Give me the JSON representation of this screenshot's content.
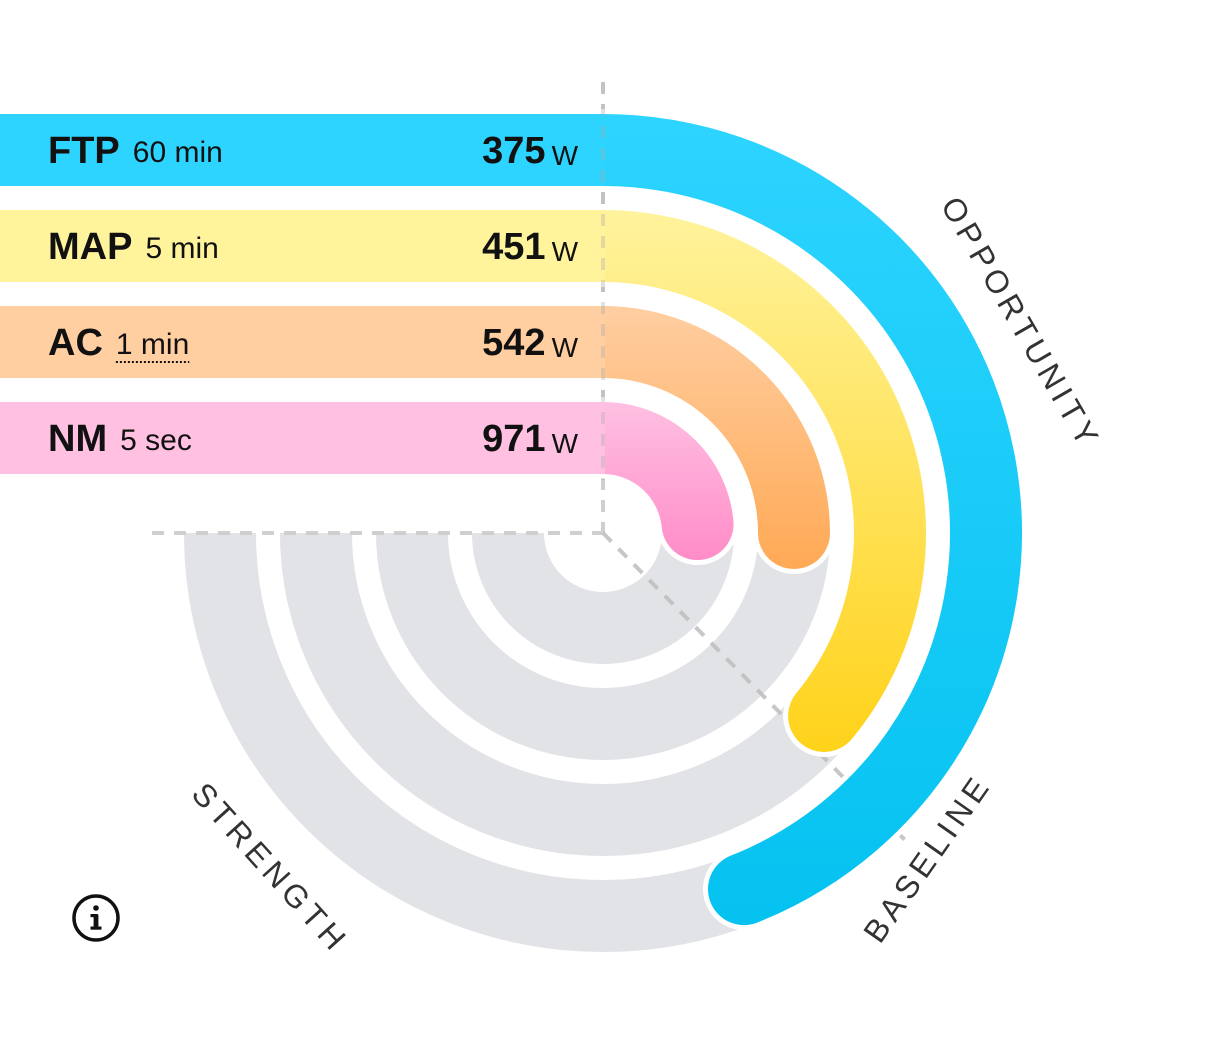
{
  "chart_data": {
    "type": "radial-bar",
    "rows": [
      {
        "name": "FTP",
        "duration": "60 min",
        "value": 375,
        "unit": "W",
        "color": "#2DD4FF",
        "fill": 0.88
      },
      {
        "name": "MAP",
        "duration": "5 min",
        "value": 451,
        "unit": "W",
        "color": "#FFF39C",
        "fill": 0.72
      },
      {
        "name": "AC",
        "duration": "1 min",
        "value": 542,
        "unit": "W",
        "color": "#FFCEA1",
        "fill": 0.5,
        "duration_underlined": true
      },
      {
        "name": "NM",
        "duration": "5 sec",
        "value": 971,
        "unit": "W",
        "color": "#FFC0E2",
        "fill": 0.47
      }
    ],
    "arc_gradients": [
      {
        "from": "#2DD4FF",
        "to": "#05C2F0"
      },
      {
        "from": "#FFF39C",
        "to": "#FFD21A"
      },
      {
        "from": "#FFCEA1",
        "to": "#FFA955"
      },
      {
        "from": "#FFC0E2",
        "to": "#FF8CC8"
      }
    ],
    "track_color": "#E2E3E7",
    "axis_labels": {
      "opportunity": "OPPORTUNITY",
      "baseline": "BASELINE",
      "strength": "STRENGTH"
    }
  },
  "info_button": {
    "icon": "info-icon",
    "glyph": "i"
  }
}
